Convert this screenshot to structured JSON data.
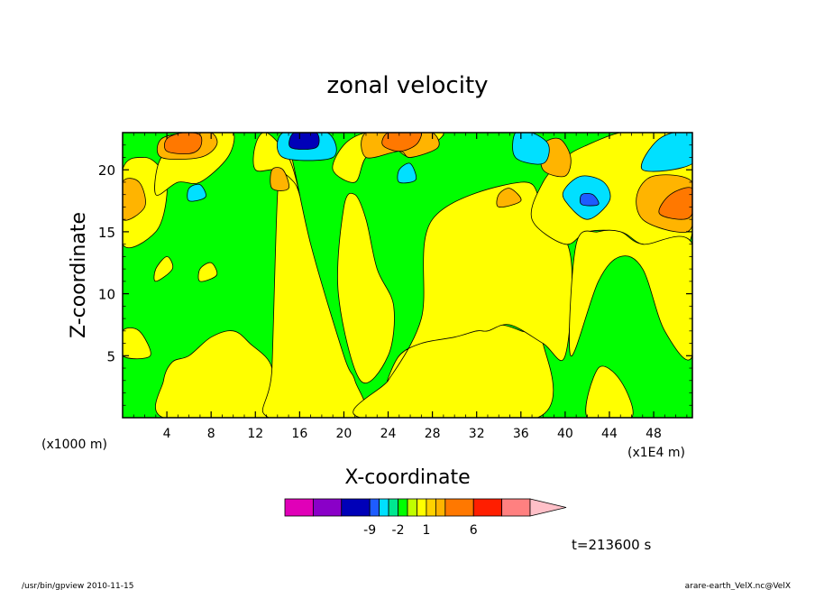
{
  "chart_data": {
    "type": "heatmap",
    "title": "zonal velocity",
    "xlabel": "X-coordinate",
    "ylabel": "Z-coordinate",
    "x_unit": "(x1E4 m)",
    "y_unit": "(x1000 m)",
    "xlim": [
      0,
      51.5
    ],
    "ylim": [
      0,
      23
    ],
    "x_ticks": [
      4,
      8,
      12,
      16,
      20,
      24,
      28,
      32,
      36,
      40,
      44,
      48
    ],
    "y_ticks": [
      5,
      10,
      15,
      20
    ],
    "time_label": "t=213600 s",
    "colorbar": {
      "colors": [
        "#e000b8",
        "#8a00c8",
        "#0000b8",
        "#1e5cff",
        "#00e0ff",
        "#00e890",
        "#00ff00",
        "#c0ff00",
        "#ffff00",
        "#ffd200",
        "#ffb400",
        "#ff7800",
        "#ff1e00",
        "#ff8080",
        "#ffc0c8"
      ],
      "widths": [
        3,
        3,
        3,
        1,
        1,
        1,
        1,
        1,
        1,
        1,
        1,
        3,
        3,
        3
      ],
      "tick_labels": [
        "-9",
        "-2",
        "1",
        "6"
      ],
      "tick_after_index": [
        2,
        5,
        8,
        11
      ]
    },
    "background_level_color": "#00ff00",
    "features": [
      {
        "x": [
          0,
          13,
          13,
          0
        ],
        "y": [
          0,
          0,
          23,
          23
        ],
        "color": "#00ff00"
      },
      {
        "x": [
          3.7,
          13.2,
          13.5,
          11.5,
          10,
          8,
          6,
          4.5,
          3.7
        ],
        "y": [
          0,
          0,
          4,
          6,
          7,
          6.5,
          5,
          4.5,
          3
        ],
        "color": "#ffff00"
      },
      {
        "x": [
          13.2,
          21.5,
          21,
          20,
          17,
          15,
          14.5,
          14,
          13.5
        ],
        "y": [
          0,
          0,
          3,
          5,
          14,
          22,
          20,
          18,
          4
        ],
        "color": "#ffff00"
      },
      {
        "x": [
          21.5,
          37.5,
          38,
          36,
          34,
          32,
          28,
          26.5,
          25,
          24
        ],
        "y": [
          0,
          0,
          6,
          7,
          7.5,
          7,
          7.5,
          6,
          5,
          3
        ],
        "color": "#ffff00"
      },
      {
        "x": [
          24,
          25,
          27,
          30,
          32,
          33,
          35,
          38,
          40,
          40.5,
          38,
          36,
          28,
          27
        ],
        "y": [
          3,
          5,
          6,
          6.5,
          7,
          7,
          7.5,
          6,
          5,
          13,
          17,
          19,
          16,
          8
        ],
        "color": "#ffff00"
      },
      {
        "x": [
          21.5,
          24,
          24.5,
          23,
          22,
          21,
          20,
          19.5
        ],
        "y": [
          3,
          5,
          9,
          12,
          16,
          18,
          17,
          10
        ],
        "color": "#ffff00"
      },
      {
        "x": [
          0,
          3,
          4,
          3.5,
          2,
          0
        ],
        "y": [
          14,
          15,
          18,
          20,
          21,
          20
        ],
        "color": "#ffff00"
      },
      {
        "x": [
          3,
          5,
          7,
          9.5,
          10,
          8,
          6,
          3.5
        ],
        "y": [
          18,
          19,
          19,
          21,
          23,
          23,
          22,
          21
        ],
        "color": "#ffff00"
      },
      {
        "x": [
          12,
          14,
          15.5,
          16,
          15,
          13,
          12
        ],
        "y": [
          20,
          20,
          19,
          18,
          21,
          23,
          22
        ],
        "color": "#ffff00"
      },
      {
        "x": [
          19,
          21,
          22,
          24,
          26,
          28,
          29,
          27,
          25,
          22,
          20
        ],
        "y": [
          20,
          19,
          21,
          22,
          21,
          22,
          23,
          23,
          23,
          23,
          22
        ],
        "color": "#ffff00"
      },
      {
        "x": [
          37,
          40,
          42,
          45,
          47,
          50,
          51.5,
          51.5,
          48,
          45,
          42,
          40,
          38
        ],
        "y": [
          16,
          14,
          15,
          15,
          14,
          14,
          15,
          23,
          23,
          23,
          22,
          21,
          19
        ],
        "color": "#ffff00"
      },
      {
        "x": [
          40.5,
          43,
          45,
          47,
          49,
          51.5,
          51.5,
          47,
          45,
          43,
          41
        ],
        "y": [
          5,
          11,
          13,
          12,
          7,
          5,
          14,
          14,
          15,
          15,
          14
        ],
        "color": "#ffff00"
      },
      {
        "x": [
          42,
          46,
          45,
          43
        ],
        "y": [
          0,
          0,
          3,
          4
        ],
        "color": "#ffff00"
      },
      {
        "x": [
          0,
          2.5,
          1.5,
          0
        ],
        "y": [
          5,
          5,
          7,
          7
        ],
        "color": "#ffff00"
      },
      {
        "x": [
          3,
          4.5,
          4,
          3
        ],
        "y": [
          11,
          12,
          13,
          12
        ],
        "color": "#ffff00"
      },
      {
        "x": [
          7,
          8.5,
          8,
          7
        ],
        "y": [
          11,
          11.5,
          12.5,
          12
        ],
        "color": "#ffff00"
      },
      {
        "x": [
          0,
          2,
          1.5,
          0
        ],
        "y": [
          16,
          17,
          19,
          19
        ],
        "color": "#ffb400"
      },
      {
        "x": [
          3.5,
          7,
          8.5,
          8,
          6,
          3.5
        ],
        "y": [
          21,
          21,
          22,
          23,
          23,
          22.5
        ],
        "color": "#ffb400"
      },
      {
        "x": [
          4,
          6,
          7,
          7,
          5.5,
          4
        ],
        "y": [
          21.5,
          21.3,
          21.8,
          22.8,
          23,
          22.5
        ],
        "color": "#ff7800"
      },
      {
        "x": [
          13.5,
          15,
          14.5,
          13.5
        ],
        "y": [
          18.5,
          18.5,
          20,
          20
        ],
        "color": "#ffb400"
      },
      {
        "x": [
          22,
          25,
          26,
          28.5,
          28,
          26,
          22
        ],
        "y": [
          21,
          21.5,
          21,
          21.8,
          23,
          23,
          23
        ],
        "color": "#ffb400"
      },
      {
        "x": [
          23.5,
          25,
          26.5,
          27,
          26,
          24
        ],
        "y": [
          22,
          21.5,
          22,
          23,
          23,
          23
        ],
        "color": "#ff7800"
      },
      {
        "x": [
          34,
          36,
          35,
          34
        ],
        "y": [
          17,
          17.5,
          18.5,
          18
        ],
        "color": "#ffb400"
      },
      {
        "x": [
          38,
          40,
          40.5,
          39.5,
          38
        ],
        "y": [
          20,
          19.5,
          21,
          22.5,
          22
        ],
        "color": "#ffb400"
      },
      {
        "x": [
          47,
          50,
          51.5,
          51.5,
          48,
          46.5
        ],
        "y": [
          16,
          15,
          15.5,
          19,
          19.5,
          18
        ],
        "color": "#ffb400"
      },
      {
        "x": [
          48.5,
          50.5,
          51.5,
          51.5,
          49.5
        ],
        "y": [
          16.5,
          16,
          16.5,
          18.5,
          18
        ],
        "color": "#ff7800"
      },
      {
        "x": [
          14.5,
          19,
          18.5,
          14.5
        ],
        "y": [
          21,
          21,
          23,
          23
        ],
        "color": "#00e0ff"
      },
      {
        "x": [
          15.2,
          17.5,
          17.5,
          15.5
        ],
        "y": [
          21.8,
          21.8,
          23,
          23
        ],
        "color": "#0000b8"
      },
      {
        "x": [
          35.5,
          38,
          38.5,
          37,
          35.5
        ],
        "y": [
          21,
          20.5,
          22,
          23,
          23
        ],
        "color": "#00e0ff"
      },
      {
        "x": [
          40,
          42,
          44,
          43.5,
          41.5,
          40
        ],
        "y": [
          17.5,
          16,
          17.5,
          19,
          19.5,
          18.5
        ],
        "color": "#00e0ff"
      },
      {
        "x": [
          41.5,
          43,
          42.5,
          41.5
        ],
        "y": [
          17.2,
          17.2,
          18,
          18
        ],
        "color": "#1e5cff"
      },
      {
        "x": [
          47,
          51.5,
          51.5,
          48.5
        ],
        "y": [
          20,
          20.5,
          23,
          22.5
        ],
        "color": "#00e0ff"
      },
      {
        "x": [
          6,
          7.5,
          7,
          6
        ],
        "y": [
          17.5,
          17.8,
          18.8,
          18.5
        ],
        "color": "#00e0ff"
      },
      {
        "x": [
          25,
          26.5,
          26,
          25
        ],
        "y": [
          19,
          19.2,
          20.5,
          20
        ],
        "color": "#00e0ff"
      }
    ]
  },
  "footer": {
    "left": "/usr/bin/gpview  2010-11-15",
    "right": "arare-earth_VelX.nc@VelX"
  }
}
